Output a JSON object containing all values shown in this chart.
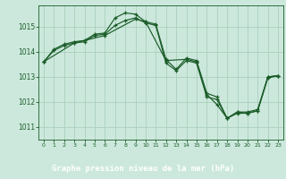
{
  "background_color": "#cce8dc",
  "plot_bg_color": "#cce8dc",
  "bottom_bar_color": "#4a8c5c",
  "grid_color": "#aad0bc",
  "line_color": "#1a5c28",
  "marker_color": "#1a5c28",
  "xlabel": "Graphe pression niveau de la mer (hPa)",
  "xlim": [
    -0.5,
    23.5
  ],
  "ylim": [
    1010.5,
    1015.85
  ],
  "yticks": [
    1011,
    1012,
    1013,
    1014,
    1015
  ],
  "xticks": [
    0,
    1,
    2,
    3,
    4,
    5,
    6,
    7,
    8,
    9,
    10,
    11,
    12,
    13,
    14,
    15,
    16,
    17,
    18,
    19,
    20,
    21,
    22,
    23
  ],
  "series": [
    {
      "x": [
        0,
        1,
        2,
        3,
        4,
        5,
        6,
        7,
        8,
        9,
        10,
        11,
        12,
        13,
        14,
        15,
        16,
        17,
        18,
        19,
        20,
        21,
        22,
        23
      ],
      "y": [
        1013.6,
        1014.1,
        1014.3,
        1014.4,
        1014.45,
        1014.7,
        1014.75,
        1015.35,
        1015.55,
        1015.5,
        1015.2,
        1015.1,
        1013.7,
        1013.3,
        1013.75,
        1013.65,
        1012.35,
        1012.2,
        1011.35,
        1011.6,
        1011.6,
        1011.7,
        1013.0,
        1013.05
      ]
    },
    {
      "x": [
        0,
        1,
        2,
        3,
        4,
        5,
        6,
        7,
        8,
        9,
        10,
        11,
        12,
        13,
        14,
        15,
        16,
        17,
        18,
        19,
        20,
        21,
        22,
        23
      ],
      "y": [
        1013.6,
        1014.05,
        1014.25,
        1014.35,
        1014.4,
        1014.65,
        1014.7,
        1015.05,
        1015.25,
        1015.35,
        1015.15,
        1015.05,
        1013.55,
        1013.25,
        1013.65,
        1013.55,
        1012.2,
        1012.1,
        1011.35,
        1011.55,
        1011.55,
        1011.65,
        1012.95,
        1013.05
      ]
    },
    {
      "x": [
        0,
        3,
        6,
        9,
        10,
        12,
        14,
        15,
        16,
        17,
        18,
        19,
        20,
        21,
        22,
        23
      ],
      "y": [
        1013.6,
        1014.35,
        1014.65,
        1015.3,
        1015.2,
        1013.65,
        1013.7,
        1013.6,
        1012.3,
        1011.9,
        1011.35,
        1011.6,
        1011.55,
        1011.65,
        1013.0,
        1013.05
      ]
    }
  ]
}
